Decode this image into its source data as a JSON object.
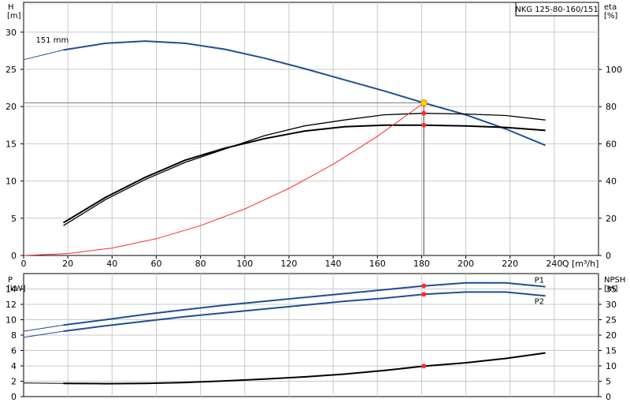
{
  "title": "NKG 125-80-160/151",
  "colors": {
    "blue": "#1f4e96",
    "black": "#000000",
    "red": "#ff2a2a",
    "grid": "#c8c8c8",
    "op": "#808080",
    "yellow": "#ffd400"
  },
  "chart_data": [
    {
      "type": "line",
      "name": "QH / efficiency chart",
      "x_label": "Q [m³/h]",
      "y_left_label": [
        "H",
        "[m]"
      ],
      "y_right_label": [
        "eta",
        "[%]"
      ],
      "x_ticks": [
        0,
        20,
        40,
        60,
        80,
        100,
        120,
        140,
        160,
        180,
        200,
        220,
        240
      ],
      "y_left_ticks": [
        0,
        5,
        10,
        15,
        20,
        25,
        30
      ],
      "y_right_ticks": [
        0,
        20,
        40,
        60,
        80,
        100
      ],
      "xlim": [
        0,
        260
      ],
      "ylim_left": [
        0,
        34
      ],
      "ylim_right": [
        0,
        136
      ],
      "grid": true,
      "annotation": "151 mm",
      "series": [
        {
          "id": "head",
          "axis": "left",
          "color": "#1f4e96",
          "x": [
            0,
            18,
            37,
            55,
            73,
            91,
            109,
            127,
            145,
            163,
            181,
            200,
            218,
            236
          ],
          "y": [
            26.3,
            27.6,
            28.5,
            28.8,
            28.5,
            27.7,
            26.5,
            25.1,
            23.6,
            22.1,
            20.5,
            18.9,
            17.0,
            14.8
          ],
          "solid_from": 18
        },
        {
          "id": "efficiency_total",
          "axis": "right",
          "color": "#000000",
          "x": [
            18,
            37,
            55,
            73,
            91,
            109,
            127,
            145,
            163,
            181,
            200,
            218,
            236
          ],
          "y": [
            17.6,
            31.2,
            42.0,
            51.2,
            57.6,
            62.8,
            66.8,
            69.2,
            70.0,
            70.0,
            69.6,
            68.8,
            67.2
          ]
        },
        {
          "id": "efficiency_hydraulic",
          "axis": "right",
          "color": "#000000",
          "x": [
            18,
            37,
            55,
            73,
            91,
            109,
            127,
            145,
            163,
            181,
            200,
            218,
            236
          ],
          "y": [
            16.0,
            30.0,
            40.8,
            50.0,
            57.2,
            64.4,
            69.6,
            72.8,
            75.6,
            76.4,
            76.0,
            75.2,
            72.8
          ]
        },
        {
          "id": "system_curve",
          "axis": "left",
          "color": "#ff2a2a",
          "x": [
            0,
            20,
            40,
            60,
            80,
            100,
            120,
            140,
            160,
            181
          ],
          "y": [
            0,
            0.25,
            1.0,
            2.25,
            4.0,
            6.25,
            9.0,
            12.25,
            16.0,
            20.5
          ]
        }
      ],
      "operating_point": {
        "q": 181,
        "h": 20.5,
        "eta_hydraulic": 76.4,
        "eta_total": 70.0
      }
    },
    {
      "type": "line",
      "name": "Power / NPSH chart",
      "x_ticks": [
        0,
        20,
        40,
        60,
        80,
        100,
        120,
        140,
        160,
        180,
        200,
        220,
        240
      ],
      "y_left_label": [
        "P",
        "[kW]"
      ],
      "y_right_label": [
        "NPSH",
        "[m]"
      ],
      "y_left_ticks": [
        0,
        2,
        4,
        6,
        8,
        10,
        12,
        14
      ],
      "y_right_ticks": [
        0,
        5,
        10,
        15,
        20,
        25,
        30,
        35
      ],
      "xlim": [
        0,
        260
      ],
      "ylim_left": [
        0,
        16
      ],
      "ylim_right": [
        0,
        40
      ],
      "grid": true,
      "series": [
        {
          "id": "P1",
          "name": "P1",
          "axis": "left",
          "color": "#1f4e96",
          "x": [
            0,
            18,
            37,
            55,
            73,
            91,
            109,
            127,
            145,
            163,
            181,
            200,
            218,
            236
          ],
          "y": [
            8.5,
            9.3,
            10.0,
            10.7,
            11.3,
            11.9,
            12.4,
            12.9,
            13.4,
            13.9,
            14.4,
            14.8,
            14.8,
            14.3
          ],
          "solid_from": 18
        },
        {
          "id": "P2",
          "name": "P2",
          "axis": "left",
          "color": "#1f4e96",
          "x": [
            0,
            18,
            37,
            55,
            73,
            91,
            109,
            127,
            145,
            163,
            181,
            200,
            218,
            236
          ],
          "y": [
            7.7,
            8.5,
            9.2,
            9.8,
            10.4,
            10.9,
            11.4,
            11.9,
            12.4,
            12.8,
            13.3,
            13.6,
            13.6,
            13.1
          ],
          "solid_from": 18
        },
        {
          "id": "NPSH",
          "axis": "right",
          "color": "#000000",
          "x": [
            0,
            18,
            37,
            55,
            73,
            91,
            109,
            127,
            145,
            163,
            181,
            200,
            218,
            236
          ],
          "y": [
            4.4,
            4.3,
            4.2,
            4.3,
            4.6,
            5.1,
            5.7,
            6.4,
            7.3,
            8.5,
            9.9,
            11.0,
            12.4,
            14.2
          ],
          "solid_from": 18
        }
      ],
      "operating_point": {
        "q": 181,
        "p1": 14.4,
        "p2": 13.3,
        "npsh": 9.9
      }
    }
  ]
}
